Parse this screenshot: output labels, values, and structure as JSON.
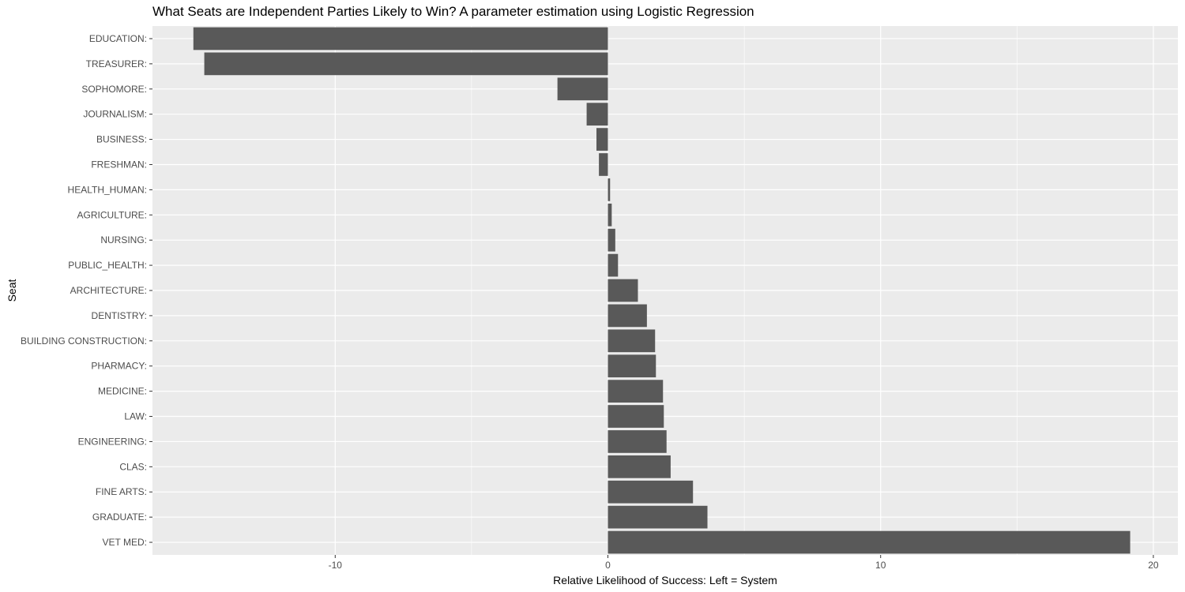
{
  "chart_data": {
    "type": "bar",
    "orientation": "horizontal",
    "title": "What Seats are Independent Parties Likely to Win? A parameter estimation using Logistic Regression",
    "xlabel": "Relative Likelihood of Success: Left = System",
    "ylabel": "Seat",
    "xlim": [
      -16.7,
      20.9
    ],
    "xticks": [
      -10,
      0,
      10,
      20
    ],
    "grid": true,
    "bar_color": "#595959",
    "panel_color": "#ebebeb",
    "grid_color": "#ffffff",
    "categories": [
      "EDUCATION:",
      "TREASURER:",
      "SOPHOMORE:",
      "JOURNALISM:",
      "BUSINESS:",
      "FRESHMAN:",
      "HEALTH_HUMAN:",
      "AGRICULTURE:",
      "NURSING:",
      "PUBLIC_HEALTH:",
      "ARCHITECTURE:",
      "DENTISTRY:",
      "BUILDING CONSTRUCTION:",
      "PHARMACY:",
      "MEDICINE:",
      "LAW:",
      "ENGINEERING:",
      "CLAS:",
      "FINE ARTS:",
      "GRADUATE:",
      "VET MED:"
    ],
    "values": [
      -15.2,
      -14.8,
      -1.85,
      -0.78,
      -0.42,
      -0.33,
      0.08,
      0.14,
      0.27,
      0.37,
      1.1,
      1.43,
      1.73,
      1.76,
      2.02,
      2.05,
      2.15,
      2.3,
      3.12,
      3.65,
      19.15
    ]
  }
}
